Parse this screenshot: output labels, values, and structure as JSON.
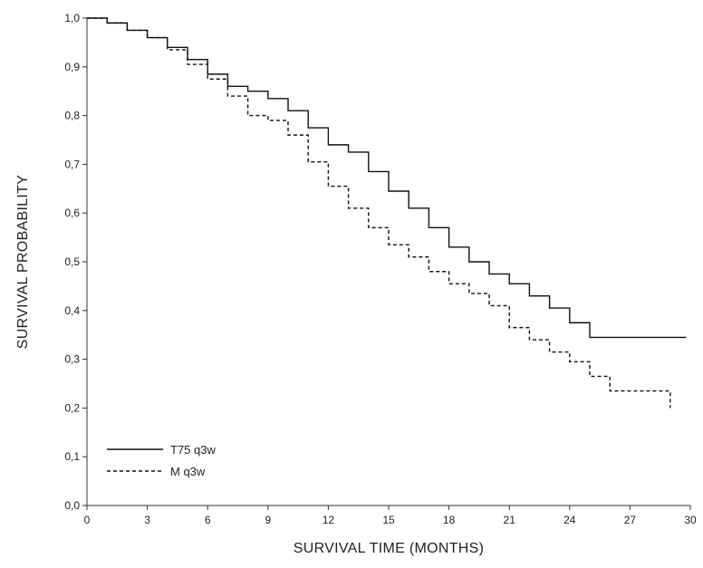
{
  "chart_data": {
    "type": "line",
    "title": "",
    "xlabel": "SURVIVAL TIME (MONTHS)",
    "ylabel": "SURVIVAL PROBABILITY",
    "xlim": [
      0,
      30
    ],
    "ylim": [
      0,
      1.0
    ],
    "xticks": [
      0,
      3,
      6,
      9,
      12,
      15,
      18,
      21,
      24,
      27,
      30
    ],
    "xtick_labels": [
      "0",
      "3",
      "6",
      "9",
      "12",
      "15",
      "18",
      "21",
      "24",
      "27",
      "30"
    ],
    "yticks": [
      0,
      0.1,
      0.2,
      0.3,
      0.4,
      0.5,
      0.6,
      0.7,
      0.8,
      0.9,
      1.0
    ],
    "ytick_labels": [
      "0,0",
      "0,1",
      "0,2",
      "0,3",
      "0,4",
      "0,5",
      "0,6",
      "0,7",
      "0,8",
      "0,9",
      "1,0"
    ],
    "grid": false,
    "legend_position": "bottom-left",
    "series": [
      {
        "name": "T75 q3w",
        "style": "solid",
        "color": "#111111",
        "x": [
          0,
          1,
          2,
          3,
          4,
          5,
          6,
          7,
          8,
          9,
          10,
          11,
          12,
          13,
          14,
          15,
          16,
          17,
          18,
          19,
          20,
          21,
          22,
          23,
          24,
          25,
          26,
          27,
          28,
          29,
          29.8
        ],
        "y": [
          1.0,
          0.99,
          0.975,
          0.96,
          0.94,
          0.915,
          0.885,
          0.86,
          0.85,
          0.835,
          0.81,
          0.775,
          0.74,
          0.725,
          0.685,
          0.645,
          0.61,
          0.57,
          0.53,
          0.5,
          0.475,
          0.455,
          0.43,
          0.405,
          0.375,
          0.345,
          0.345,
          0.345,
          0.345,
          0.345,
          0.345
        ]
      },
      {
        "name": "M q3w",
        "style": "dashed",
        "color": "#111111",
        "x": [
          0,
          1,
          2,
          3,
          4,
          5,
          6,
          7,
          8,
          9,
          10,
          11,
          12,
          13,
          14,
          15,
          16,
          17,
          18,
          19,
          20,
          21,
          22,
          23,
          24,
          25,
          26,
          27,
          28,
          28.5,
          29,
          29.0
        ],
        "y": [
          1.0,
          0.99,
          0.975,
          0.96,
          0.935,
          0.905,
          0.875,
          0.84,
          0.8,
          0.79,
          0.76,
          0.705,
          0.655,
          0.61,
          0.57,
          0.535,
          0.51,
          0.48,
          0.455,
          0.435,
          0.41,
          0.365,
          0.34,
          0.315,
          0.295,
          0.265,
          0.235,
          0.235,
          0.235,
          0.235,
          0.235,
          0.2
        ]
      }
    ]
  }
}
